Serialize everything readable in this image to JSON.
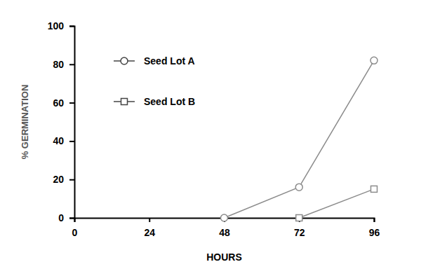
{
  "chart_data": {
    "type": "line",
    "x_label": "HOURS",
    "y_label": "% GERMINATION",
    "x": [
      48,
      72,
      96
    ],
    "series": [
      {
        "name": "Seed Lot A",
        "color": "#8c8c8c",
        "marker": "circle",
        "values": [
          0,
          16,
          82
        ]
      },
      {
        "name": "Seed Lot B",
        "color": "#8c8c8c",
        "marker": "square",
        "values": [
          null,
          0,
          15
        ]
      }
    ],
    "xlim": [
      0,
      96
    ],
    "xticks": [
      0,
      24,
      48,
      72,
      96
    ],
    "ylim": [
      0,
      100
    ],
    "yticks": [
      0,
      20,
      40,
      60,
      80,
      100
    ],
    "grid": false,
    "legend": "upper left"
  }
}
